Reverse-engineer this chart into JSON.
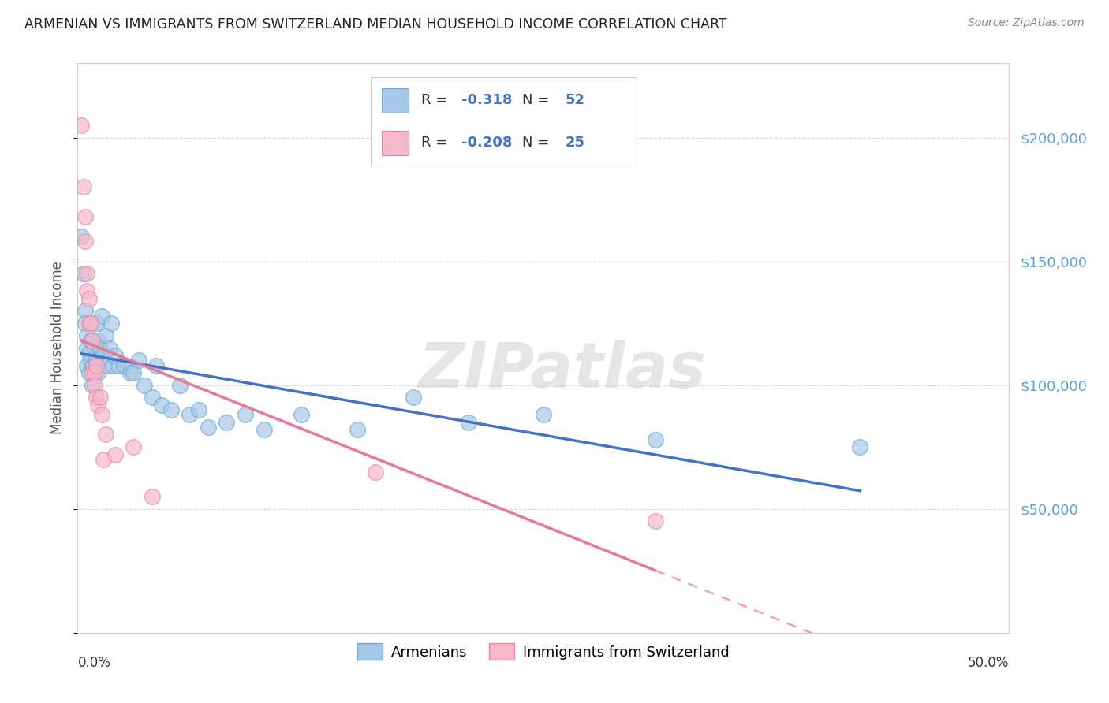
{
  "title": "ARMENIAN VS IMMIGRANTS FROM SWITZERLAND MEDIAN HOUSEHOLD INCOME CORRELATION CHART",
  "source": "Source: ZipAtlas.com",
  "ylabel": "Median Household Income",
  "xlim": [
    0.0,
    0.5
  ],
  "ylim": [
    0,
    230000
  ],
  "yticks": [
    50000,
    100000,
    150000,
    200000
  ],
  "ytick_labels": [
    "$50,000",
    "$100,000",
    "$150,000",
    "$200,000"
  ],
  "xtick_positions": [
    0.0,
    0.1,
    0.2,
    0.3,
    0.4,
    0.5
  ],
  "xtick_labels": [
    "0.0%",
    "",
    "",
    "",
    "",
    "50.0%"
  ],
  "background_color": "#ffffff",
  "grid_color": "#d8d8d8",
  "armenian_color": "#a8c8e8",
  "armenian_edge": "#6aaad4",
  "swiss_color": "#f4b8c8",
  "swiss_edge": "#e888a8",
  "trend_armenian_color": "#4472c4",
  "trend_swiss_color": "#e87898",
  "watermark": "ZIPatlas",
  "legend_label_armenian": "Armenians",
  "legend_label_swiss": "Immigrants from Switzerland",
  "legend_r1": "R = ",
  "legend_v1": "-0.318",
  "legend_n1_label": "N = ",
  "legend_n1": "52",
  "legend_r2": "R = ",
  "legend_v2": "-0.208",
  "legend_n2_label": "N = ",
  "legend_n2": "25",
  "armenian_x": [
    0.002,
    0.003,
    0.004,
    0.004,
    0.005,
    0.005,
    0.005,
    0.006,
    0.006,
    0.007,
    0.007,
    0.008,
    0.008,
    0.009,
    0.009,
    0.01,
    0.01,
    0.011,
    0.011,
    0.012,
    0.013,
    0.014,
    0.015,
    0.016,
    0.017,
    0.018,
    0.019,
    0.02,
    0.022,
    0.025,
    0.028,
    0.03,
    0.033,
    0.036,
    0.04,
    0.042,
    0.045,
    0.05,
    0.055,
    0.06,
    0.065,
    0.07,
    0.08,
    0.09,
    0.1,
    0.12,
    0.15,
    0.18,
    0.21,
    0.25,
    0.31,
    0.42
  ],
  "armenian_y": [
    160000,
    145000,
    130000,
    125000,
    120000,
    115000,
    108000,
    113000,
    105000,
    118000,
    110000,
    108000,
    100000,
    115000,
    105000,
    125000,
    110000,
    118000,
    105000,
    115000,
    128000,
    112000,
    120000,
    108000,
    115000,
    125000,
    108000,
    112000,
    108000,
    108000,
    105000,
    105000,
    110000,
    100000,
    95000,
    108000,
    92000,
    90000,
    100000,
    88000,
    90000,
    83000,
    85000,
    88000,
    82000,
    88000,
    82000,
    95000,
    85000,
    88000,
    78000,
    75000
  ],
  "swiss_x": [
    0.002,
    0.003,
    0.004,
    0.004,
    0.005,
    0.005,
    0.006,
    0.006,
    0.007,
    0.008,
    0.008,
    0.009,
    0.009,
    0.01,
    0.01,
    0.011,
    0.012,
    0.013,
    0.014,
    0.015,
    0.02,
    0.03,
    0.04,
    0.16,
    0.31
  ],
  "swiss_y": [
    205000,
    180000,
    168000,
    158000,
    145000,
    138000,
    135000,
    125000,
    125000,
    118000,
    105000,
    105000,
    100000,
    108000,
    95000,
    92000,
    95000,
    88000,
    70000,
    80000,
    72000,
    75000,
    55000,
    65000,
    45000
  ],
  "swiss_trend_x_start": 0.002,
  "swiss_trend_x_end": 0.5
}
